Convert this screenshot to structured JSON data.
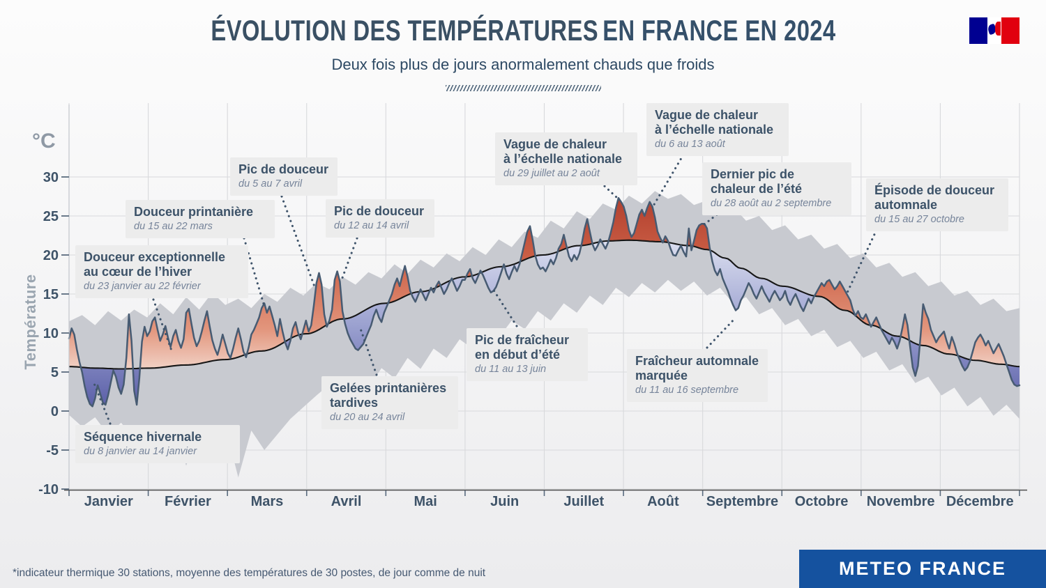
{
  "header": {
    "title_regular": "ÉVOLUTION DES TEMPÉRATURES",
    "title_bold": "EN FRANCE EN 2024",
    "subtitle": "Deux fois plus de jours anormalement chauds que froids"
  },
  "axes": {
    "unit": "°C",
    "ylabel": "Température",
    "y_ticks": [
      30,
      25,
      20,
      15,
      10,
      5,
      0,
      -5,
      -10
    ],
    "months": [
      "Janvier",
      "Février",
      "Mars",
      "Avril",
      "Mai",
      "Juin",
      "Juillet",
      "Août",
      "Septembre",
      "Octobre",
      "Novembre",
      "Décembre"
    ]
  },
  "annotations": [
    {
      "id": "douceur-hiver",
      "title": "Douceur exceptionnelle\nau cœur de l’hiver",
      "date": "du 23 janvier au 22 février"
    },
    {
      "id": "sequence-hivernale",
      "title": "Séquence hivernale",
      "date": "du 8 janvier au 14 janvier"
    },
    {
      "id": "douceur-printaniere",
      "title": "Douceur printanière",
      "date": "du 15 au 22 mars"
    },
    {
      "id": "pic-douceur-avril-1",
      "title": "Pic de douceur",
      "date": "du 5 au 7 avril"
    },
    {
      "id": "pic-douceur-avril-2",
      "title": "Pic de douceur",
      "date": "du 12 au 14 avril"
    },
    {
      "id": "gelees-printanieres",
      "title": "Gelées printanières\ntardives",
      "date": "du 20 au 24 avril"
    },
    {
      "id": "pic-fraicheur-ete",
      "title": "Pic de fraîcheur\nen début d’été",
      "date": "du 11 au 13 juin"
    },
    {
      "id": "vague-chaleur-juillet",
      "title": "Vague de chaleur\nà l’échelle nationale",
      "date": "du 29 juillet au 2 août"
    },
    {
      "id": "vague-chaleur-aout",
      "title": "Vague de chaleur\nà l’échelle nationale",
      "date": "du 6 au 13 août"
    },
    {
      "id": "dernier-pic-chaleur",
      "title": "Dernier pic de\nchaleur de l’été",
      "date": "du 28 août au 2 septembre"
    },
    {
      "id": "fraicheur-automnale",
      "title": "Fraîcheur automnale\nmarquée",
      "date": "du 11 au 16 septembre"
    },
    {
      "id": "episode-douceur-automnale",
      "title": "Épisode de douceur\nautomnale",
      "date": "du 15 au 27 octobre"
    }
  ],
  "footer": {
    "note": "*indicateur thermique 30 stations, moyenne des températures de 30 postes, de jour comme de nuit",
    "brand": "METEO FRANCE"
  },
  "colors": {
    "warm_fill_dark": "#aa3526",
    "warm_fill_mid": "#cd6248",
    "warm_fill_light": "#f6e4dc",
    "cool_fill_dark": "#4d51a0",
    "cool_fill_mid": "#9aa0cf",
    "cool_fill_light": "#e4e7f4",
    "band_gray": "#c8cad0",
    "daily_line": "#475b72",
    "normal_line": "#161616",
    "grid": "#d8d9dc",
    "axis_text": "#3e5368",
    "brand_blue": "#15529f",
    "flag_blue": "#000091",
    "flag_red": "#e1000f"
  },
  "chart_data": {
    "type": "line",
    "title": "Évolution des températures en France en 2024",
    "x_unit": "jour de l’année 2024",
    "y_unit": "°C",
    "ylim": [
      -10,
      30
    ],
    "grid": true,
    "legend": false,
    "series_description": {
      "daily": "indicateur thermique quotidien 2024",
      "normal": "normale lissée",
      "variability_band": "plage de variabilité habituelle (gris)"
    },
    "daily": [
      9.3,
      10.6,
      9.8,
      7.9,
      6.3,
      5.0,
      3.2,
      1.8,
      0.9,
      0.6,
      1.6,
      3.3,
      2.2,
      1.1,
      0.8,
      2.0,
      3.6,
      5.2,
      4.4,
      3.0,
      2.2,
      3.4,
      6.8,
      12.4,
      9.0,
      2.6,
      0.8,
      4.2,
      8.9,
      10.8,
      9.6,
      10.2,
      11.5,
      12.0,
      10.4,
      9.0,
      9.8,
      10.9,
      9.4,
      8.2,
      9.6,
      10.4,
      9.0,
      8.1,
      9.2,
      12.6,
      13.1,
      11.2,
      9.4,
      8.3,
      9.0,
      10.2,
      11.6,
      12.8,
      10.9,
      9.1,
      8.0,
      7.2,
      8.4,
      9.8,
      8.6,
      7.4,
      6.8,
      8.0,
      9.4,
      10.6,
      9.2,
      7.6,
      6.9,
      8.2,
      9.8,
      10.4,
      11.2,
      12.0,
      13.2,
      13.8,
      12.6,
      13.4,
      12.2,
      11.0,
      9.6,
      11.8,
      10.2,
      8.8,
      7.9,
      9.0,
      10.6,
      11.4,
      10.0,
      9.2,
      10.4,
      11.6,
      10.2,
      11.0,
      13.5,
      16.4,
      17.7,
      16.2,
      12.4,
      10.8,
      11.6,
      13.0,
      16.8,
      17.9,
      16.6,
      12.8,
      11.2,
      10.0,
      9.2,
      8.6,
      8.0,
      7.8,
      8.2,
      8.6,
      9.4,
      10.2,
      11.0,
      12.2,
      13.0,
      12.0,
      11.4,
      12.6,
      13.4,
      14.2,
      15.0,
      16.2,
      17.0,
      16.0,
      17.4,
      18.6,
      17.2,
      15.4,
      14.6,
      14.0,
      14.8,
      15.6,
      14.9,
      14.2,
      15.0,
      15.8,
      15.2,
      16.0,
      16.6,
      15.8,
      15.0,
      15.6,
      16.4,
      17.0,
      16.2,
      15.4,
      16.0,
      16.8,
      16.8,
      17.6,
      18.2,
      17.0,
      16.4,
      17.2,
      18.0,
      17.4,
      16.6,
      15.8,
      15.2,
      15.4,
      15.9,
      16.8,
      17.8,
      18.8,
      17.6,
      16.9,
      17.8,
      18.6,
      17.9,
      18.8,
      20.2,
      21.6,
      23.0,
      23.7,
      22.0,
      20.0,
      18.8,
      18.2,
      18.4,
      17.9,
      18.6,
      19.4,
      18.8,
      19.6,
      20.8,
      21.4,
      22.6,
      21.2,
      19.8,
      19.2,
      20.0,
      19.4,
      20.2,
      21.6,
      23.4,
      24.6,
      23.0,
      21.4,
      20.6,
      21.2,
      22.0,
      21.4,
      20.8,
      21.6,
      22.8,
      24.2,
      26.0,
      27.3,
      26.8,
      26.2,
      25.0,
      23.2,
      22.3,
      22.8,
      24.0,
      25.2,
      25.8,
      25.0,
      26.0,
      26.8,
      26.2,
      24.8,
      23.0,
      22.2,
      21.6,
      22.4,
      21.8,
      20.8,
      20.0,
      19.9,
      20.6,
      21.2,
      20.4,
      19.8,
      23.4,
      20.6,
      21.8,
      23.2,
      23.8,
      24.0,
      24.0,
      23.4,
      21.0,
      19.2,
      18.0,
      17.4,
      18.2,
      17.0,
      16.2,
      15.4,
      14.4,
      13.6,
      12.9,
      13.2,
      14.2,
      14.8,
      15.6,
      16.4,
      15.8,
      15.0,
      14.4,
      15.2,
      16.0,
      15.2,
      14.6,
      14.0,
      14.8,
      15.4,
      14.8,
      14.2,
      14.6,
      15.4,
      14.2,
      13.6,
      14.4,
      15.0,
      14.2,
      13.4,
      12.8,
      13.6,
      14.4,
      13.8,
      14.6,
      15.2,
      15.8,
      16.4,
      16.0,
      16.6,
      16.8,
      16.2,
      15.6,
      16.0,
      16.6,
      16.0,
      15.4,
      14.8,
      14.2,
      13.0,
      12.2,
      12.8,
      12.0,
      11.8,
      12.4,
      11.6,
      10.8,
      11.4,
      12.0,
      11.2,
      10.4,
      9.8,
      9.2,
      8.6,
      9.4,
      8.8,
      8.0,
      9.0,
      10.6,
      12.4,
      11.0,
      8.2,
      5.6,
      4.5,
      5.8,
      9.6,
      13.7,
      12.6,
      11.8,
      10.4,
      9.6,
      8.8,
      9.4,
      9.8,
      10.2,
      9.0,
      8.0,
      9.5,
      8.6,
      7.4,
      6.6,
      5.8,
      5.2,
      5.6,
      6.4,
      7.6,
      8.8,
      9.4,
      9.8,
      9.2,
      8.4,
      9.0,
      8.2,
      7.4,
      8.0,
      8.6,
      7.8,
      7.0,
      6.0,
      5.0,
      4.0,
      3.4,
      3.2,
      3.3
    ],
    "normal": {
      "days": [
        0,
        10,
        20,
        31,
        45,
        60,
        74,
        91,
        105,
        121,
        135,
        152,
        166,
        182,
        196,
        207,
        215,
        227,
        238,
        245,
        252,
        258,
        266,
        274,
        288,
        298,
        308,
        318,
        328,
        338,
        348,
        358,
        365
      ],
      "values": [
        5.7,
        5.5,
        5.4,
        5.5,
        5.9,
        6.6,
        7.7,
        9.9,
        11.8,
        13.8,
        15.3,
        17.2,
        18.5,
        20.0,
        21.2,
        21.8,
        21.9,
        21.7,
        21.2,
        20.7,
        19.6,
        18.3,
        17.0,
        16.0,
        14.7,
        12.9,
        11.0,
        9.6,
        8.4,
        7.3,
        6.5,
        6.0,
        5.7
      ]
    },
    "variability_band": {
      "days": [
        0,
        5,
        10,
        15,
        20,
        25,
        30,
        35,
        40,
        45,
        50,
        55,
        60,
        65,
        70,
        75,
        80,
        85,
        90,
        95,
        100,
        105,
        110,
        115,
        120,
        125,
        130,
        135,
        140,
        145,
        150,
        155,
        160,
        165,
        170,
        175,
        180,
        185,
        190,
        195,
        200,
        205,
        210,
        215,
        220,
        225,
        230,
        235,
        240,
        245,
        250,
        255,
        260,
        265,
        270,
        275,
        280,
        285,
        290,
        295,
        300,
        305,
        310,
        315,
        320,
        325,
        330,
        335,
        340,
        345,
        350,
        355,
        360,
        365
      ],
      "upper": [
        11.5,
        12.3,
        11.0,
        12.8,
        11.6,
        13.0,
        12.0,
        13.8,
        12.4,
        14.6,
        13.0,
        15.2,
        13.6,
        14.4,
        13.2,
        15.0,
        14.0,
        15.8,
        14.8,
        16.4,
        15.6,
        17.2,
        16.2,
        17.8,
        17.0,
        18.8,
        17.6,
        19.4,
        18.4,
        20.2,
        19.2,
        21.0,
        20.0,
        22.0,
        21.0,
        23.0,
        22.2,
        24.4,
        23.4,
        25.6,
        24.6,
        26.6,
        25.8,
        27.6,
        26.6,
        28.2,
        27.2,
        27.8,
        26.4,
        27.0,
        25.6,
        26.2,
        24.4,
        25.0,
        23.2,
        23.8,
        22.0,
        22.6,
        20.8,
        21.4,
        19.6,
        20.2,
        18.4,
        19.0,
        17.2,
        17.8,
        16.0,
        16.6,
        14.8,
        15.4,
        13.6,
        14.4,
        12.8,
        13.2
      ],
      "lower": [
        -0.5,
        -2.0,
        -0.8,
        -3.0,
        -1.5,
        -3.6,
        -1.8,
        -4.0,
        -2.2,
        -7.0,
        -2.5,
        -4.5,
        -2.0,
        -8.5,
        -2.5,
        -5.0,
        -3.0,
        -1.0,
        0.5,
        2.0,
        3.4,
        2.0,
        4.4,
        3.0,
        5.5,
        4.2,
        6.8,
        5.4,
        8.0,
        6.8,
        9.2,
        8.0,
        10.5,
        9.4,
        11.6,
        10.5,
        12.8,
        11.6,
        13.8,
        12.6,
        14.8,
        13.6,
        15.8,
        14.6,
        16.4,
        15.2,
        16.8,
        15.4,
        16.6,
        14.8,
        15.8,
        13.8,
        14.6,
        12.4,
        13.2,
        11.0,
        11.8,
        9.6,
        10.4,
        8.2,
        9.0,
        6.8,
        7.6,
        5.2,
        6.0,
        3.6,
        4.4,
        2.0,
        3.0,
        0.6,
        1.8,
        -0.6,
        0.8,
        -1.0
      ]
    }
  }
}
